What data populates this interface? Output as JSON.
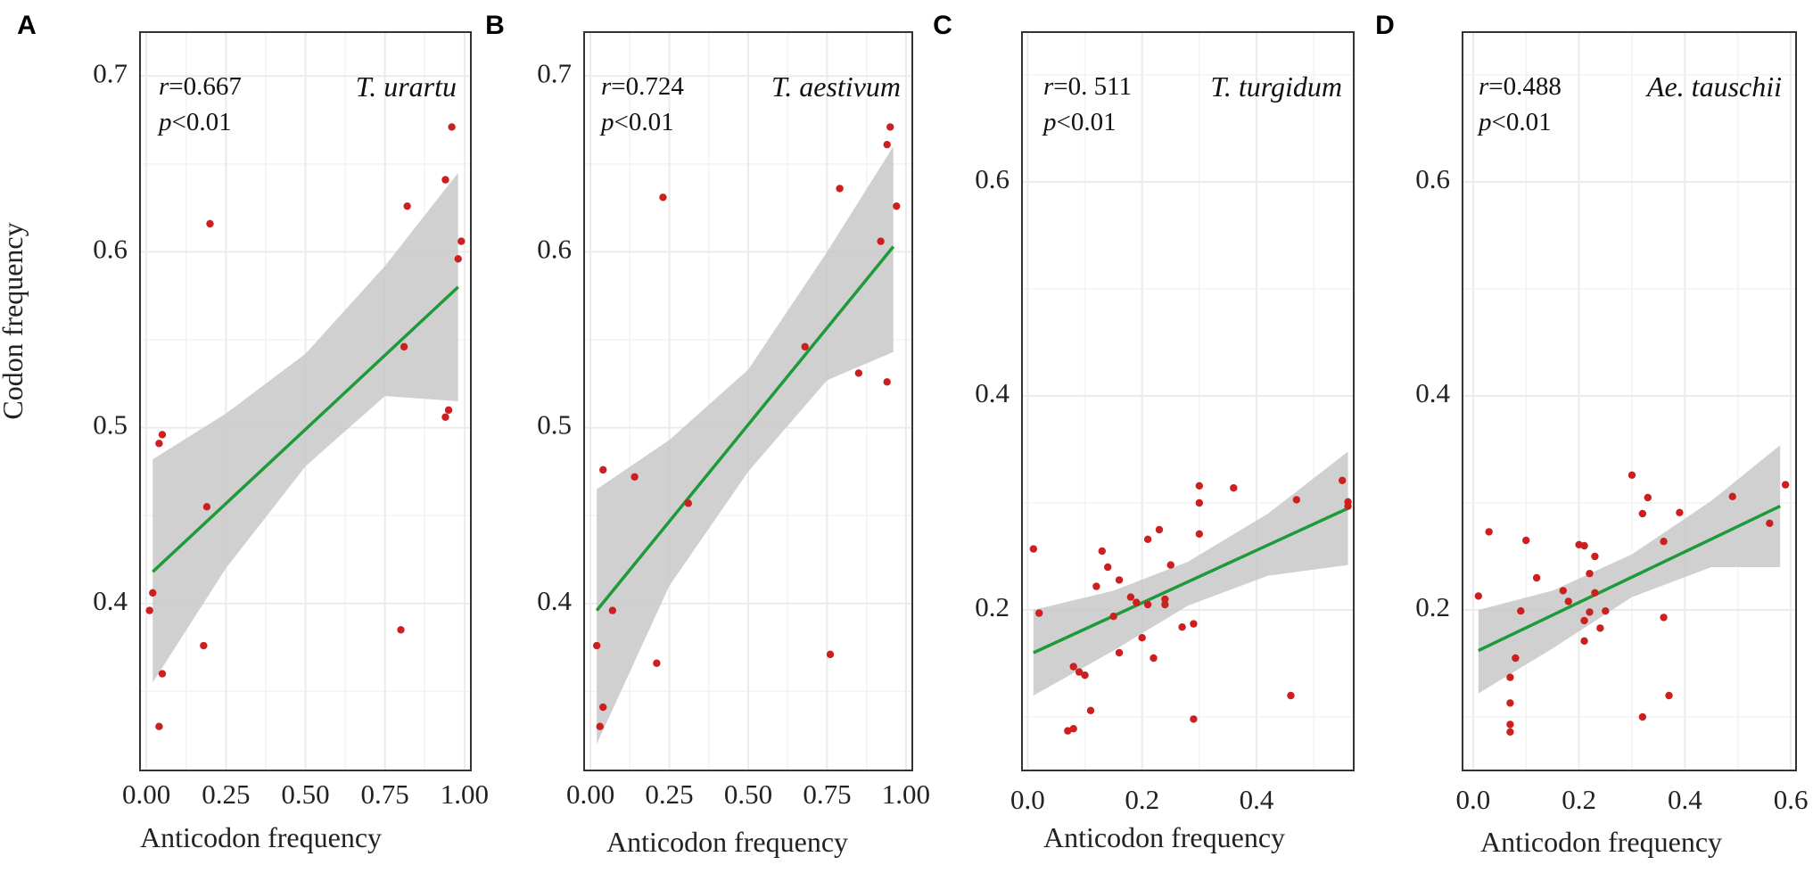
{
  "chart_data": [
    {
      "type": "scatter",
      "panel": "A",
      "species": "T. urartu",
      "stat_r_label": "r",
      "stat_r_value": "=0.667",
      "stat_p_label": "p",
      "stat_p_value": "<0.01",
      "xlabel": "Anticodon frequency",
      "ylabel": "Codon frequency",
      "xlim": [
        -0.02,
        1.02
      ],
      "ylim": [
        0.305,
        0.725
      ],
      "xticks": [
        0,
        0.25,
        0.5,
        0.75,
        1.0
      ],
      "xtick_labels": [
        "0.00",
        "0.25",
        "0.50",
        "0.75",
        "1.00"
      ],
      "yticks": [
        0.4,
        0.5,
        0.6,
        0.7
      ],
      "ytick_labels": [
        "0.4",
        "0.5",
        "0.6",
        "0.7"
      ],
      "points": [
        [
          0.01,
          0.396
        ],
        [
          0.02,
          0.406
        ],
        [
          0.04,
          0.33
        ],
        [
          0.05,
          0.36
        ],
        [
          0.04,
          0.491
        ],
        [
          0.05,
          0.496
        ],
        [
          0.18,
          0.376
        ],
        [
          0.19,
          0.455
        ],
        [
          0.2,
          0.616
        ],
        [
          0.8,
          0.385
        ],
        [
          0.81,
          0.546
        ],
        [
          0.82,
          0.626
        ],
        [
          0.94,
          0.506
        ],
        [
          0.95,
          0.51
        ],
        [
          0.94,
          0.641
        ],
        [
          0.96,
          0.671
        ],
        [
          0.98,
          0.596
        ],
        [
          0.99,
          0.606
        ]
      ],
      "fit": {
        "x0": 0.02,
        "y0": 0.418,
        "x1": 0.98,
        "y1": 0.58
      },
      "band": [
        [
          0.02,
          0.355,
          0.482
        ],
        [
          0.25,
          0.42,
          0.508
        ],
        [
          0.5,
          0.478,
          0.542
        ],
        [
          0.75,
          0.518,
          0.592
        ],
        [
          0.98,
          0.515,
          0.645
        ]
      ]
    },
    {
      "type": "scatter",
      "panel": "B",
      "species": "T. aestivum",
      "stat_r_label": "r",
      "stat_r_value": "=0.724",
      "stat_p_label": "p",
      "stat_p_value": "<0.01",
      "xlabel": "Anticodon frequency",
      "ylabel": "",
      "xlim": [
        -0.02,
        1.02
      ],
      "ylim": [
        0.305,
        0.725
      ],
      "xticks": [
        0,
        0.25,
        0.5,
        0.75,
        1.0
      ],
      "xtick_labels": [
        "0.00",
        "0.25",
        "0.50",
        "0.75",
        "1.00"
      ],
      "yticks": [
        0.4,
        0.5,
        0.6,
        0.7
      ],
      "ytick_labels": [
        "0.4",
        "0.5",
        "0.6",
        "0.7"
      ],
      "points": [
        [
          0.02,
          0.376
        ],
        [
          0.03,
          0.33
        ],
        [
          0.04,
          0.341
        ],
        [
          0.04,
          0.476
        ],
        [
          0.07,
          0.396
        ],
        [
          0.14,
          0.472
        ],
        [
          0.21,
          0.366
        ],
        [
          0.23,
          0.631
        ],
        [
          0.31,
          0.457
        ],
        [
          0.68,
          0.546
        ],
        [
          0.76,
          0.371
        ],
        [
          0.79,
          0.636
        ],
        [
          0.85,
          0.531
        ],
        [
          0.92,
          0.606
        ],
        [
          0.94,
          0.526
        ],
        [
          0.94,
          0.661
        ],
        [
          0.95,
          0.671
        ],
        [
          0.97,
          0.626
        ]
      ],
      "fit": {
        "x0": 0.02,
        "y0": 0.396,
        "x1": 0.96,
        "y1": 0.603
      },
      "band": [
        [
          0.02,
          0.32,
          0.465
        ],
        [
          0.25,
          0.41,
          0.493
        ],
        [
          0.5,
          0.475,
          0.533
        ],
        [
          0.75,
          0.527,
          0.6
        ],
        [
          0.96,
          0.543,
          0.66
        ]
      ]
    },
    {
      "type": "scatter",
      "panel": "C",
      "species": "T. turgidum",
      "stat_r_label": "r",
      "stat_r_value": "=0. 511",
      "stat_p_label": "p",
      "stat_p_value": "<0.01",
      "xlabel": "Anticodon frequency",
      "ylabel": "",
      "xlim": [
        -0.01,
        0.57
      ],
      "ylim": [
        0.05,
        0.74
      ],
      "xticks": [
        0,
        0.2,
        0.4
      ],
      "xtick_labels": [
        "0.0",
        "0.2",
        "0.4"
      ],
      "yticks": [
        0.2,
        0.4,
        0.6
      ],
      "ytick_labels": [
        "0.2",
        "0.4",
        "0.6"
      ],
      "points": [
        [
          0.01,
          0.257
        ],
        [
          0.02,
          0.197
        ],
        [
          0.07,
          0.087
        ],
        [
          0.08,
          0.089
        ],
        [
          0.08,
          0.147
        ],
        [
          0.09,
          0.142
        ],
        [
          0.1,
          0.139
        ],
        [
          0.11,
          0.106
        ],
        [
          0.12,
          0.222
        ],
        [
          0.13,
          0.255
        ],
        [
          0.14,
          0.24
        ],
        [
          0.15,
          0.194
        ],
        [
          0.16,
          0.228
        ],
        [
          0.16,
          0.16
        ],
        [
          0.18,
          0.212
        ],
        [
          0.19,
          0.207
        ],
        [
          0.2,
          0.174
        ],
        [
          0.21,
          0.205
        ],
        [
          0.22,
          0.155
        ],
        [
          0.21,
          0.266
        ],
        [
          0.23,
          0.275
        ],
        [
          0.24,
          0.21
        ],
        [
          0.24,
          0.205
        ],
        [
          0.25,
          0.242
        ],
        [
          0.27,
          0.184
        ],
        [
          0.29,
          0.098
        ],
        [
          0.29,
          0.187
        ],
        [
          0.3,
          0.271
        ],
        [
          0.3,
          0.3
        ],
        [
          0.3,
          0.316
        ],
        [
          0.36,
          0.314
        ],
        [
          0.46,
          0.12
        ],
        [
          0.47,
          0.303
        ],
        [
          0.55,
          0.321
        ],
        [
          0.56,
          0.297
        ],
        [
          0.56,
          0.301
        ]
      ],
      "fit": {
        "x0": 0.01,
        "y0": 0.16,
        "x1": 0.56,
        "y1": 0.295
      },
      "band": [
        [
          0.01,
          0.12,
          0.2
        ],
        [
          0.15,
          0.162,
          0.218
        ],
        [
          0.28,
          0.204,
          0.245
        ],
        [
          0.42,
          0.232,
          0.29
        ],
        [
          0.56,
          0.242,
          0.348
        ]
      ]
    },
    {
      "type": "scatter",
      "panel": "D",
      "species": "Ae. tauschii",
      "stat_r_label": "r",
      "stat_r_value": "=0.488",
      "stat_p_label": "p",
      "stat_p_value": "<0.01",
      "xlabel": "Anticodon frequency",
      "ylabel": "",
      "xlim": [
        -0.02,
        0.61
      ],
      "ylim": [
        0.05,
        0.74
      ],
      "xticks": [
        0,
        0.2,
        0.4,
        0.6
      ],
      "xtick_labels": [
        "0.0",
        "0.2",
        "0.4",
        "0.6"
      ],
      "yticks": [
        0.2,
        0.4,
        0.6
      ],
      "ytick_labels": [
        "0.2",
        "0.4",
        "0.6"
      ],
      "points": [
        [
          0.01,
          0.213
        ],
        [
          0.03,
          0.273
        ],
        [
          0.07,
          0.086
        ],
        [
          0.07,
          0.093
        ],
        [
          0.07,
          0.113
        ],
        [
          0.07,
          0.137
        ],
        [
          0.08,
          0.155
        ],
        [
          0.09,
          0.199
        ],
        [
          0.1,
          0.265
        ],
        [
          0.12,
          0.23
        ],
        [
          0.17,
          0.218
        ],
        [
          0.18,
          0.208
        ],
        [
          0.2,
          0.261
        ],
        [
          0.21,
          0.26
        ],
        [
          0.21,
          0.19
        ],
        [
          0.21,
          0.171
        ],
        [
          0.22,
          0.234
        ],
        [
          0.22,
          0.198
        ],
        [
          0.23,
          0.25
        ],
        [
          0.23,
          0.216
        ],
        [
          0.24,
          0.183
        ],
        [
          0.25,
          0.199
        ],
        [
          0.3,
          0.326
        ],
        [
          0.32,
          0.1
        ],
        [
          0.32,
          0.29
        ],
        [
          0.33,
          0.305
        ],
        [
          0.36,
          0.264
        ],
        [
          0.36,
          0.193
        ],
        [
          0.37,
          0.12
        ],
        [
          0.39,
          0.291
        ],
        [
          0.49,
          0.306
        ],
        [
          0.56,
          0.281
        ],
        [
          0.59,
          0.317
        ]
      ],
      "fit": {
        "x0": 0.01,
        "y0": 0.162,
        "x1": 0.58,
        "y1": 0.297
      },
      "band": [
        [
          0.01,
          0.122,
          0.2
        ],
        [
          0.15,
          0.164,
          0.218
        ],
        [
          0.3,
          0.212,
          0.252
        ],
        [
          0.45,
          0.24,
          0.302
        ],
        [
          0.58,
          0.24,
          0.354
        ]
      ]
    }
  ]
}
